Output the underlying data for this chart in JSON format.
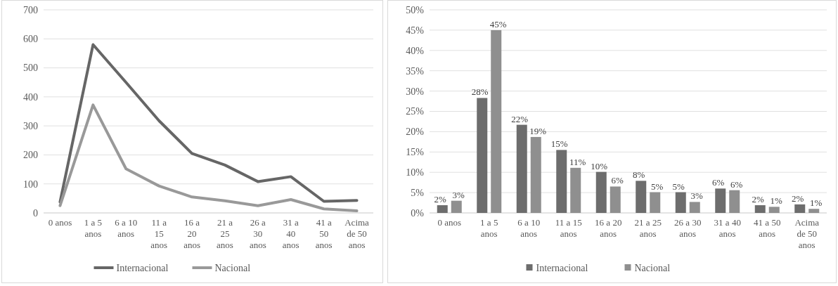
{
  "chart_data": [
    {
      "type": "line",
      "categories": [
        "0 anos",
        "1 a 5 anos",
        "6 a 10 anos",
        "11 a 15 anos",
        "16 a 20 anos",
        "21 a 25 anos",
        "26 a 30 anos",
        "31 a 40 anos",
        "41 a 50 anos",
        "Acima de 50 anos"
      ],
      "series": [
        {
          "name": "Internacional",
          "color": "#666666",
          "values": [
            38,
            580,
            450,
            318,
            205,
            165,
            108,
            125,
            40,
            43
          ]
        },
        {
          "name": "Nacional",
          "color": "#999999",
          "values": [
            25,
            372,
            152,
            93,
            55,
            42,
            25,
            46,
            14,
            7
          ]
        }
      ],
      "ylim": [
        0,
        700
      ],
      "yticks": [
        0,
        100,
        200,
        300,
        400,
        500,
        600,
        700
      ],
      "grid": "y",
      "legend": "bottom"
    },
    {
      "type": "bar",
      "categories": [
        "0 anos",
        "1 a 5 anos",
        "6 a 10 anos",
        "11 a 15 anos",
        "16 a 20 anos",
        "21 a 25 anos",
        "26 a 30 anos",
        "31 a 40 anos",
        "41 a 50 anos",
        "Acima de 50 anos"
      ],
      "series": [
        {
          "name": "Internacional",
          "color": "#6d6d6d",
          "values": [
            1.9,
            28.3,
            21.7,
            15.5,
            10.1,
            7.9,
            5.1,
            6.0,
            1.9,
            2.1
          ],
          "value_labels": [
            "2%",
            "28%",
            "22%",
            "15%",
            "10%",
            "8%",
            "5%",
            "6%",
            "2%",
            "2%"
          ]
        },
        {
          "name": "Nacional",
          "color": "#8f8f8f",
          "values": [
            3.0,
            45.0,
            18.7,
            11.1,
            6.5,
            5.1,
            2.7,
            5.6,
            1.5,
            1.0
          ],
          "value_labels": [
            "3%",
            "45%",
            "19%",
            "11%",
            "6%",
            "5%",
            "3%",
            "6%",
            "1%",
            "1%"
          ]
        }
      ],
      "ylim": [
        0,
        50
      ],
      "yticks": [
        {
          "value": 0,
          "label": "0%"
        },
        {
          "value": 5,
          "label": "5%"
        },
        {
          "value": 10,
          "label": "10%"
        },
        {
          "value": 15,
          "label": "15%"
        },
        {
          "value": 20,
          "label": "20%"
        },
        {
          "value": 25,
          "label": "25%"
        },
        {
          "value": 30,
          "label": "30%"
        },
        {
          "value": 35,
          "label": "35%"
        },
        {
          "value": 40,
          "label": "40%"
        },
        {
          "value": 45,
          "label": "45%"
        },
        {
          "value": 50,
          "label": "50%"
        }
      ],
      "grid": "y",
      "legend": "bottom"
    }
  ]
}
